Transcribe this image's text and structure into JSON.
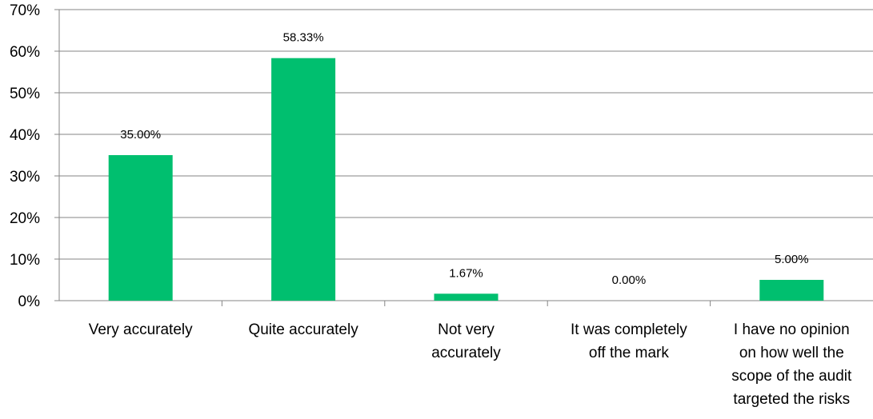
{
  "chart_data": {
    "type": "bar",
    "categories": [
      [
        "Very accurately"
      ],
      [
        "Quite accurately"
      ],
      [
        "Not very",
        "accurately"
      ],
      [
        "It was completely",
        "off the mark"
      ],
      [
        "I have no opinion",
        "on how well the",
        "scope of the audit",
        "targeted the risks"
      ]
    ],
    "values": [
      35.0,
      58.33,
      1.67,
      0.0,
      5.0
    ],
    "data_labels": [
      "35.00%",
      "58.33%",
      "1.67%",
      "0.00%",
      "5.00%"
    ],
    "y_ticks": [
      "0%",
      "10%",
      "20%",
      "30%",
      "40%",
      "50%",
      "60%",
      "70%"
    ],
    "ylim": [
      0,
      70
    ],
    "grid": true,
    "bar_color": "#00BF6F",
    "grid_color": "#868686"
  }
}
